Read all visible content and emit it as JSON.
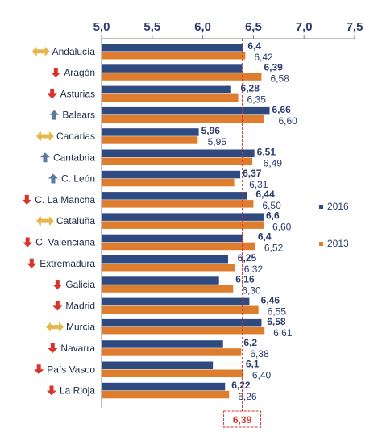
{
  "chart_data": {
    "type": "bar",
    "orientation": "horizontal",
    "xlim": [
      5.0,
      7.5
    ],
    "ticks": [
      "5,0",
      "5,5",
      "6,0",
      "6,5",
      "7,0",
      "7,5"
    ],
    "tick_values": [
      5.0,
      5.5,
      6.0,
      6.5,
      7.0,
      7.5
    ],
    "categories": [
      "Andalucía",
      "Aragón",
      "Asturias",
      "Balears",
      "Canarias",
      "Cantabria",
      "C. León",
      "C. La Mancha",
      "Cataluña",
      "C. Valenciana",
      "Extremadura",
      "Galicia",
      "Madrid",
      "Murcia",
      "Navarra",
      "País Vasco",
      "La Rioja"
    ],
    "trend_icons": [
      "sideways-arrow-icon",
      "down-arrow-icon",
      "down-arrow-icon",
      "up-arrow-icon",
      "sideways-arrow-icon",
      "up-arrow-icon",
      "up-arrow-icon",
      "down-arrow-icon",
      "sideways-arrow-icon",
      "down-arrow-icon",
      "down-arrow-icon",
      "down-arrow-icon",
      "down-arrow-icon",
      "sideways-arrow-icon",
      "down-arrow-icon",
      "down-arrow-icon",
      "down-arrow-icon"
    ],
    "series": [
      {
        "name": "2016",
        "color": "#2f4a80",
        "values": [
          6.4,
          6.39,
          6.28,
          6.66,
          5.96,
          6.51,
          6.37,
          6.44,
          6.6,
          6.4,
          6.25,
          6.16,
          6.46,
          6.58,
          6.2,
          6.1,
          6.22
        ],
        "labels": [
          "6,4",
          "6,39",
          "6,28",
          "6,66",
          "5,96",
          "6,51",
          "6,37",
          "6,44",
          "6,6",
          "6,4",
          "6,25",
          "6,16",
          "6,46",
          "6,58",
          "6,2",
          "6,1",
          "6,22"
        ]
      },
      {
        "name": "2013",
        "color": "#dd7d2d",
        "values": [
          6.42,
          6.58,
          6.35,
          6.6,
          5.95,
          6.49,
          6.31,
          6.5,
          6.6,
          6.52,
          6.32,
          6.3,
          6.55,
          6.61,
          6.38,
          6.4,
          6.26
        ],
        "labels": [
          "6,42",
          "6,58",
          "6,35",
          "6,60",
          "5,95",
          "6,49",
          "6,31",
          "6,50",
          "6,60",
          "6,52",
          "6,32",
          "6,30",
          "6,55",
          "6,61",
          "6,38",
          "6,40",
          "6,26"
        ]
      }
    ],
    "reference_line": {
      "value": 6.39,
      "label": "6,39",
      "color": "#d9342b"
    },
    "icon_colors": {
      "down": "#d9342b",
      "up": "#5b7a9c",
      "sideways": "#e6b84a"
    },
    "legend_position": "right",
    "grid": false
  }
}
